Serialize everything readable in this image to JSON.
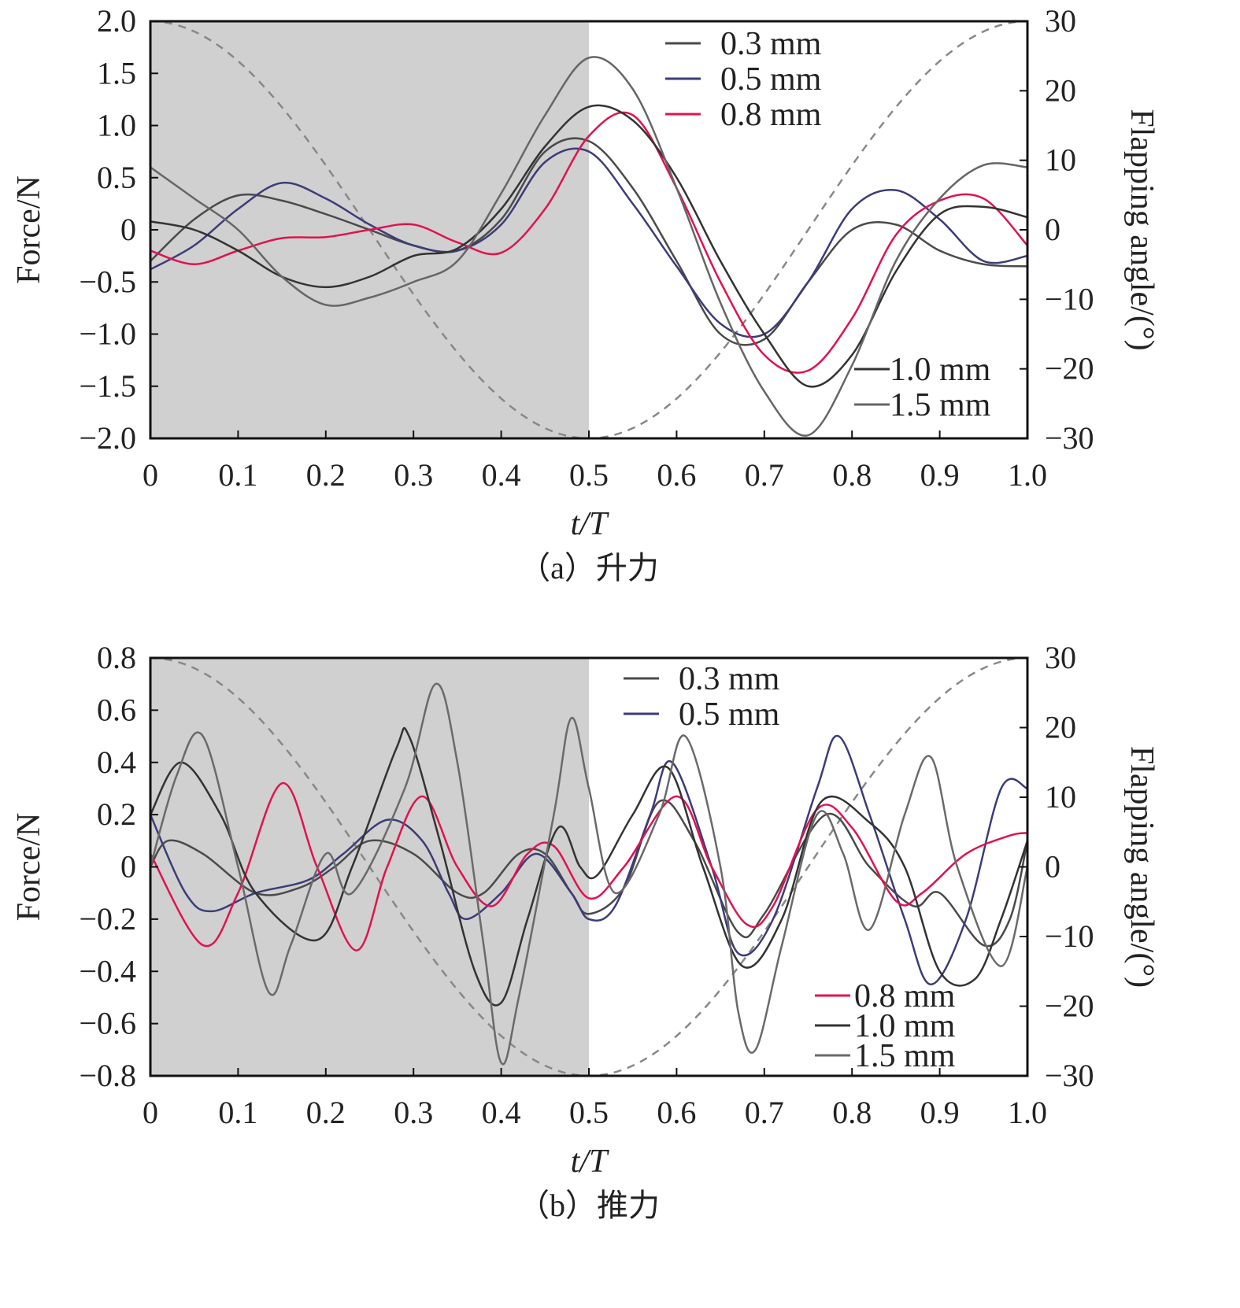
{
  "chart_data": [
    {
      "type": "line",
      "caption": "（a）升力",
      "xlabel": "t/T",
      "ylabel": "Force/N",
      "y2label": "Flapping angle/(°)",
      "xlim": [
        0,
        1.0
      ],
      "ylim": [
        -2.0,
        2.0
      ],
      "y2lim": [
        -30,
        30
      ],
      "xticks": [
        "0",
        "0.1",
        "0.2",
        "0.3",
        "0.4",
        "0.5",
        "0.6",
        "0.7",
        "0.8",
        "0.9",
        "1.0"
      ],
      "yticks": [
        "2.0",
        "1.5",
        "1.0",
        "0.5",
        "0",
        "−0.5",
        "−1.0",
        "−1.5",
        "−2.0"
      ],
      "y2ticks": [
        "30",
        "20",
        "10",
        "0",
        "−10",
        "−20",
        "−30"
      ],
      "shaded_region": [
        0,
        0.5
      ],
      "legend": [
        {
          "label": "0.3 mm",
          "placement": "top-right"
        },
        {
          "label": "0.5 mm",
          "placement": "top-right"
        },
        {
          "label": "0.8 mm",
          "placement": "top-right"
        },
        {
          "label": "1.0 mm",
          "placement": "bottom-right"
        },
        {
          "label": "1.5 mm",
          "placement": "bottom-right"
        }
      ],
      "series": [
        {
          "name": "0.3 mm",
          "color": "#4a4a4a",
          "x": [
            0,
            0.05,
            0.1,
            0.15,
            0.2,
            0.25,
            0.3,
            0.35,
            0.4,
            0.45,
            0.5,
            0.55,
            0.6,
            0.65,
            0.7,
            0.75,
            0.8,
            0.85,
            0.9,
            0.95,
            1.0
          ],
          "y": [
            -0.3,
            0.1,
            0.33,
            0.28,
            0.15,
            0.0,
            -0.15,
            -0.2,
            0.1,
            0.75,
            0.85,
            0.4,
            -0.3,
            -1.0,
            -1.05,
            -0.5,
            0.0,
            0.05,
            -0.2,
            -0.33,
            -0.35
          ]
        },
        {
          "name": "0.5 mm",
          "color": "#3c3c78",
          "x": [
            0,
            0.05,
            0.1,
            0.15,
            0.2,
            0.25,
            0.3,
            0.35,
            0.4,
            0.45,
            0.5,
            0.55,
            0.6,
            0.65,
            0.7,
            0.75,
            0.8,
            0.85,
            0.9,
            0.95,
            1.0
          ],
          "y": [
            -0.38,
            -0.15,
            0.2,
            0.45,
            0.3,
            0.05,
            -0.15,
            -0.2,
            0.05,
            0.65,
            0.75,
            0.25,
            -0.35,
            -0.9,
            -1.0,
            -0.5,
            0.2,
            0.38,
            0.1,
            -0.3,
            -0.25
          ]
        },
        {
          "name": "0.8 mm",
          "color": "#e0134f",
          "x": [
            0,
            0.05,
            0.1,
            0.15,
            0.2,
            0.25,
            0.3,
            0.35,
            0.4,
            0.45,
            0.5,
            0.55,
            0.6,
            0.65,
            0.7,
            0.75,
            0.8,
            0.85,
            0.9,
            0.95,
            1.0
          ],
          "y": [
            -0.2,
            -0.33,
            -0.2,
            -0.08,
            -0.07,
            0.0,
            0.05,
            -0.12,
            -0.22,
            0.2,
            0.9,
            1.1,
            0.4,
            -0.5,
            -1.2,
            -1.35,
            -0.85,
            -0.05,
            0.28,
            0.3,
            -0.15
          ]
        },
        {
          "name": "1.0 mm",
          "color": "#333333",
          "x": [
            0,
            0.05,
            0.1,
            0.15,
            0.2,
            0.25,
            0.3,
            0.35,
            0.4,
            0.45,
            0.5,
            0.55,
            0.6,
            0.65,
            0.7,
            0.75,
            0.8,
            0.85,
            0.9,
            0.95,
            1.0
          ],
          "y": [
            0.08,
            0.0,
            -0.2,
            -0.45,
            -0.55,
            -0.45,
            -0.25,
            -0.18,
            0.2,
            0.8,
            1.18,
            1.05,
            0.5,
            -0.3,
            -1.0,
            -1.5,
            -1.2,
            -0.4,
            0.15,
            0.22,
            0.12
          ]
        },
        {
          "name": "1.5 mm",
          "color": "#666666",
          "x": [
            0,
            0.05,
            0.1,
            0.15,
            0.2,
            0.25,
            0.3,
            0.35,
            0.4,
            0.45,
            0.5,
            0.55,
            0.6,
            0.65,
            0.7,
            0.75,
            0.8,
            0.85,
            0.9,
            0.95,
            1.0
          ],
          "y": [
            0.6,
            0.3,
            0.0,
            -0.45,
            -0.72,
            -0.65,
            -0.5,
            -0.3,
            0.35,
            1.1,
            1.65,
            1.35,
            0.4,
            -0.7,
            -1.55,
            -1.97,
            -1.3,
            -0.3,
            0.3,
            0.62,
            0.6
          ]
        }
      ],
      "flapping_angle": {
        "name": "Flapping angle",
        "style": "dashed",
        "color": "#888888",
        "formula": "30*cos(2*pi*t)"
      }
    },
    {
      "type": "line",
      "caption": "（b）推力",
      "xlabel": "t/T",
      "ylabel": "Force/N",
      "y2label": "Flapping angle/(°)",
      "xlim": [
        0,
        1.0
      ],
      "ylim": [
        -0.8,
        0.8
      ],
      "y2lim": [
        -30,
        30
      ],
      "xticks": [
        "0",
        "0.1",
        "0.2",
        "0.3",
        "0.4",
        "0.5",
        "0.6",
        "0.7",
        "0.8",
        "0.9",
        "1.0"
      ],
      "yticks": [
        "0.8",
        "0.6",
        "0.4",
        "0.2",
        "0",
        "−0.2",
        "−0.4",
        "−0.6",
        "−0.8"
      ],
      "y2ticks": [
        "30",
        "20",
        "10",
        "0",
        "−10",
        "−20",
        "−30"
      ],
      "shaded_region": [
        0,
        0.5
      ],
      "legend": [
        {
          "label": "0.3 mm",
          "placement": "top-center"
        },
        {
          "label": "0.5 mm",
          "placement": "top-center"
        },
        {
          "label": "0.8 mm",
          "placement": "bottom-right"
        },
        {
          "label": "1.0 mm",
          "placement": "bottom-right"
        },
        {
          "label": "1.5 mm",
          "placement": "bottom-right"
        }
      ],
      "series": [
        {
          "name": "0.3 mm",
          "color": "#4a4a4a",
          "x": [
            0,
            0.02,
            0.06,
            0.12,
            0.17,
            0.21,
            0.25,
            0.3,
            0.35,
            0.38,
            0.42,
            0.45,
            0.48,
            0.5,
            0.54,
            0.58,
            0.62,
            0.67,
            0.7,
            0.77,
            0.82,
            0.87,
            0.9,
            0.95,
            0.98,
            1.0
          ],
          "y": [
            0.0,
            0.1,
            0.05,
            -0.1,
            -0.08,
            0.0,
            0.1,
            0.05,
            -0.1,
            -0.1,
            0.05,
            0.05,
            -0.1,
            -0.18,
            -0.08,
            0.25,
            0.1,
            -0.25,
            -0.18,
            0.2,
            0.0,
            -0.15,
            -0.1,
            -0.3,
            -0.2,
            0.1
          ]
        },
        {
          "name": "0.5 mm",
          "color": "#3c3c78",
          "x": [
            0,
            0.04,
            0.07,
            0.12,
            0.18,
            0.22,
            0.27,
            0.31,
            0.34,
            0.36,
            0.4,
            0.44,
            0.48,
            0.5,
            0.53,
            0.57,
            0.595,
            0.64,
            0.67,
            0.71,
            0.76,
            0.785,
            0.82,
            0.86,
            0.89,
            0.93,
            0.97,
            1.0
          ],
          "y": [
            0.2,
            -0.1,
            -0.17,
            -0.1,
            -0.05,
            0.05,
            0.18,
            0.1,
            -0.1,
            -0.2,
            -0.1,
            0.05,
            -0.1,
            -0.2,
            -0.15,
            0.2,
            0.4,
            0.0,
            -0.33,
            -0.2,
            0.3,
            0.5,
            0.2,
            -0.2,
            -0.45,
            -0.2,
            0.3,
            0.3
          ]
        },
        {
          "name": "0.8 mm",
          "color": "#e0134f",
          "x": [
            0,
            0.06,
            0.1,
            0.15,
            0.19,
            0.235,
            0.27,
            0.31,
            0.35,
            0.39,
            0.43,
            0.46,
            0.5,
            0.54,
            0.6,
            0.64,
            0.68,
            0.71,
            0.76,
            0.8,
            0.85,
            0.88,
            0.93,
            0.98,
            1.0
          ],
          "y": [
            0.05,
            -0.3,
            -0.1,
            0.32,
            0.0,
            -0.32,
            0.0,
            0.27,
            0.0,
            -0.15,
            0.05,
            0.08,
            -0.12,
            0.0,
            0.27,
            0.0,
            -0.22,
            -0.15,
            0.22,
            0.15,
            -0.13,
            -0.1,
            0.05,
            0.12,
            0.13
          ]
        },
        {
          "name": "1.0 mm",
          "color": "#333333",
          "x": [
            0,
            0.035,
            0.08,
            0.12,
            0.19,
            0.23,
            0.28,
            0.295,
            0.33,
            0.37,
            0.4,
            0.43,
            0.465,
            0.49,
            0.51,
            0.55,
            0.59,
            0.63,
            0.675,
            0.72,
            0.765,
            0.82,
            0.86,
            0.9,
            0.94,
            0.97,
            1.0
          ],
          "y": [
            0.2,
            0.4,
            0.2,
            -0.1,
            -0.28,
            0.0,
            0.45,
            0.5,
            0.1,
            -0.4,
            -0.52,
            -0.2,
            0.15,
            0.0,
            -0.03,
            0.2,
            0.38,
            0.0,
            -0.38,
            -0.2,
            0.25,
            0.17,
            0.0,
            -0.4,
            -0.43,
            -0.2,
            0.1
          ]
        },
        {
          "name": "1.5 mm",
          "color": "#6a6a6a",
          "x": [
            0,
            0.03,
            0.06,
            0.1,
            0.135,
            0.16,
            0.2,
            0.23,
            0.29,
            0.325,
            0.35,
            0.38,
            0.4,
            0.42,
            0.46,
            0.48,
            0.5,
            0.53,
            0.58,
            0.61,
            0.65,
            0.67,
            0.69,
            0.72,
            0.76,
            0.79,
            0.82,
            0.86,
            0.89,
            0.92,
            0.97,
            1.0
          ],
          "y": [
            0.0,
            0.35,
            0.5,
            0.0,
            -0.48,
            -0.3,
            0.05,
            -0.1,
            0.3,
            0.7,
            0.4,
            -0.3,
            -0.75,
            -0.5,
            0.2,
            0.57,
            0.3,
            -0.1,
            0.2,
            0.5,
            0.0,
            -0.55,
            -0.7,
            -0.3,
            0.2,
            0.05,
            -0.24,
            0.2,
            0.42,
            0.0,
            -0.38,
            0.0
          ]
        }
      ],
      "flapping_angle": {
        "name": "Flapping angle",
        "style": "dashed",
        "color": "#888888",
        "formula": "30*cos(2*pi*t)"
      }
    }
  ]
}
